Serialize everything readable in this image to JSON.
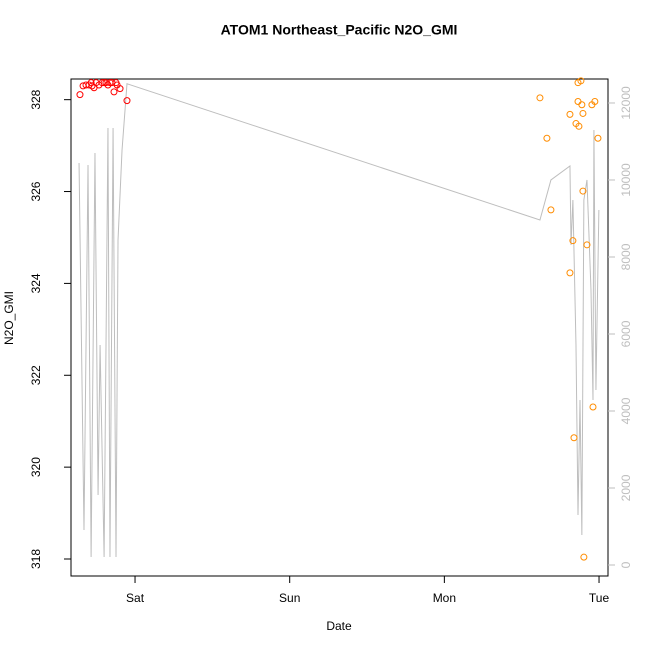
{
  "chart_data": {
    "type": "scatter",
    "title": "ATOM1 Northeast_Pacific N2O_GMI",
    "x_label": "Date",
    "y_label": "N2O_GMI",
    "xlim": [
      0.586,
      4.058
    ],
    "xticks": [
      {
        "value": 1,
        "label": "Sat"
      },
      {
        "value": 2,
        "label": "Sun"
      },
      {
        "value": 3,
        "label": "Mon"
      },
      {
        "value": 4,
        "label": "Tue"
      }
    ],
    "ylim": [
      317.63,
      328.45
    ],
    "yticks": [
      318,
      320,
      322,
      324,
      326,
      328
    ],
    "y2lim": [
      -286,
      12623
    ],
    "y2ticks": [
      0,
      2000,
      4000,
      6000,
      8000,
      10000,
      12000
    ],
    "y2_color": "#bebebe",
    "series": [
      {
        "type": "line",
        "axis": "y2",
        "color": "#bebebe",
        "x": [
          0.638,
          0.67,
          0.696,
          0.716,
          0.741,
          0.761,
          0.774,
          0.8,
          0.825,
          0.838,
          0.858,
          0.877,
          0.89,
          0.916,
          0.948,
          3.618,
          3.689,
          3.812,
          3.819,
          3.831,
          3.851,
          3.864,
          3.877,
          3.889,
          3.902,
          3.922,
          3.948,
          3.961,
          3.967,
          3.98,
          3.999
        ],
        "values": [
          10442,
          909,
          10390,
          208,
          10701,
          1818,
          5714,
          208,
          11351,
          208,
          11351,
          208,
          8442,
          10779,
          12500,
          8961,
          10000,
          10364,
          8312,
          9481,
          5714,
          1299,
          4286,
          779,
          9481,
          10000,
          7143,
          4286,
          11299,
          4545,
          9221
        ]
      },
      {
        "type": "scatter",
        "color": "#ff0000",
        "x": [
          0.644,
          0.664,
          0.683,
          0.703,
          0.716,
          0.722,
          0.735,
          0.748,
          0.767,
          0.787,
          0.8,
          0.812,
          0.825,
          0.838,
          0.851,
          0.864,
          0.877,
          0.884,
          0.903,
          0.948
        ],
        "values": [
          328.11,
          328.3,
          328.32,
          328.32,
          328.37,
          328.3,
          328.26,
          328.37,
          328.32,
          328.37,
          328.37,
          328.37,
          328.32,
          328.37,
          328.37,
          328.17,
          328.37,
          328.32,
          328.24,
          327.98
        ]
      },
      {
        "type": "scatter",
        "color": "#ff8c00",
        "x": [
          3.618,
          3.663,
          3.689,
          3.812,
          3.812,
          3.831,
          3.838,
          3.851,
          3.864,
          3.864,
          3.87,
          3.883,
          3.889,
          3.896,
          3.896,
          3.902,
          3.922,
          3.954,
          3.961,
          3.973,
          3.993
        ],
        "values": [
          328.04,
          327.16,
          325.6,
          324.23,
          327.68,
          324.93,
          320.64,
          327.48,
          328.37,
          327.96,
          327.42,
          328.41,
          327.89,
          327.7,
          326.01,
          318.04,
          324.84,
          327.89,
          321.31,
          327.96,
          327.16
        ]
      }
    ]
  }
}
